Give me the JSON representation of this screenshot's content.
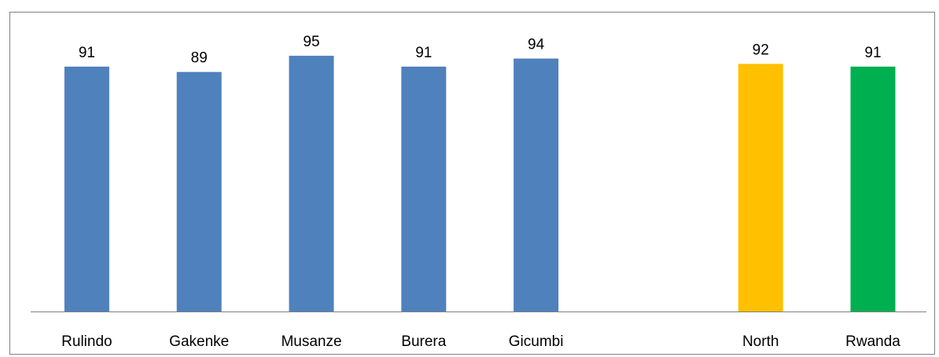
{
  "caption": "",
  "colors": {
    "district": "#4F81BD",
    "north": "#FFC000",
    "rwanda": "#00B050",
    "axis": "#808080"
  },
  "chart_data": {
    "type": "bar",
    "title": "",
    "xlabel": "",
    "ylabel": "",
    "ylim": [
      0,
      100
    ],
    "grid": false,
    "legend": "none",
    "categories": [
      "Rulindo",
      "Gakenke",
      "Musanze",
      "Burera",
      "Gicumbi",
      "",
      "North",
      "Rwanda"
    ],
    "values": [
      91,
      89,
      95,
      91,
      94,
      null,
      92,
      91
    ],
    "value_labels": [
      "91",
      "89",
      "95",
      "91",
      "94",
      "",
      "92",
      "91"
    ],
    "bar_colors": [
      "#4F81BD",
      "#4F81BD",
      "#4F81BD",
      "#4F81BD",
      "#4F81BD",
      "",
      "#FFC000",
      "#00B050"
    ]
  }
}
